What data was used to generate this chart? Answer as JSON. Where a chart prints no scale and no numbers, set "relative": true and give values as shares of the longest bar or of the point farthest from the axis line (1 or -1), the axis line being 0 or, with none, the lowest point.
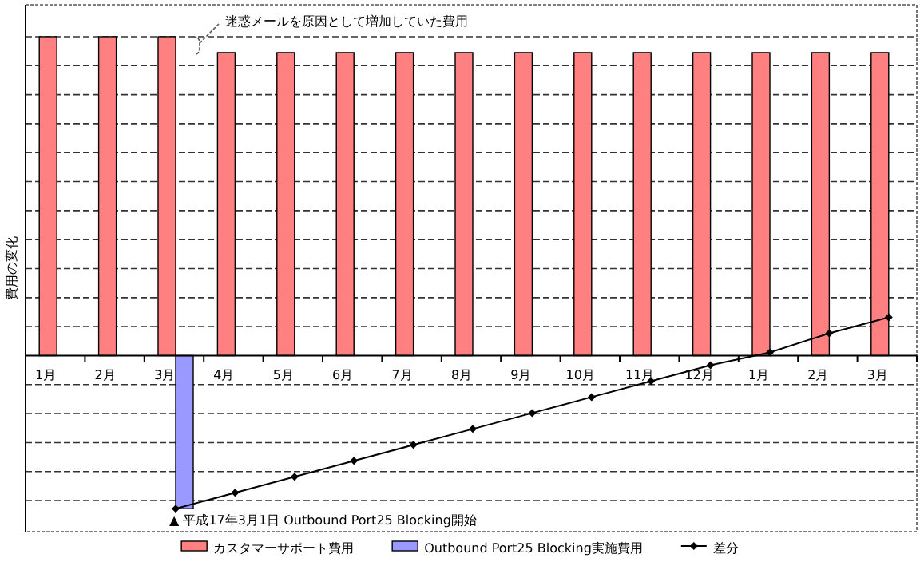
{
  "chart_data": {
    "type": "bar",
    "relative": true,
    "ylabel": "費用の変化",
    "categories": [
      "1月",
      "2月",
      "3月",
      "4月",
      "5月",
      "6月",
      "7月",
      "8月",
      "9月",
      "10月",
      "11月",
      "12月",
      "1月",
      "2月",
      "3月"
    ],
    "series": [
      {
        "name": "カスタマーサポート費用",
        "color": "#ff8080",
        "values": [
          1.0,
          1.0,
          1.0,
          0.95,
          0.95,
          0.95,
          0.95,
          0.95,
          0.95,
          0.95,
          0.95,
          0.95,
          0.95,
          0.95,
          0.95
        ]
      },
      {
        "name": "Outbound Port25 Blocking実施費用",
        "color": "#9999ff",
        "values": [
          null,
          null,
          -0.48,
          null,
          null,
          null,
          null,
          null,
          null,
          null,
          null,
          null,
          null,
          null,
          null
        ]
      },
      {
        "name": "差分",
        "type": "line",
        "color": "#000000",
        "marker": "diamond",
        "values": [
          null,
          null,
          -0.48,
          -0.43,
          -0.38,
          -0.33,
          -0.28,
          -0.23,
          -0.18,
          -0.13,
          -0.08,
          -0.03,
          0.01,
          0.07,
          0.12
        ]
      }
    ],
    "annotations": [
      "迷惑メールを原因として増加していた費用",
      "▲ 平成17年3月1日 Outbound Port25 Blocking開始"
    ],
    "grid": "y",
    "legend": "bottom"
  }
}
